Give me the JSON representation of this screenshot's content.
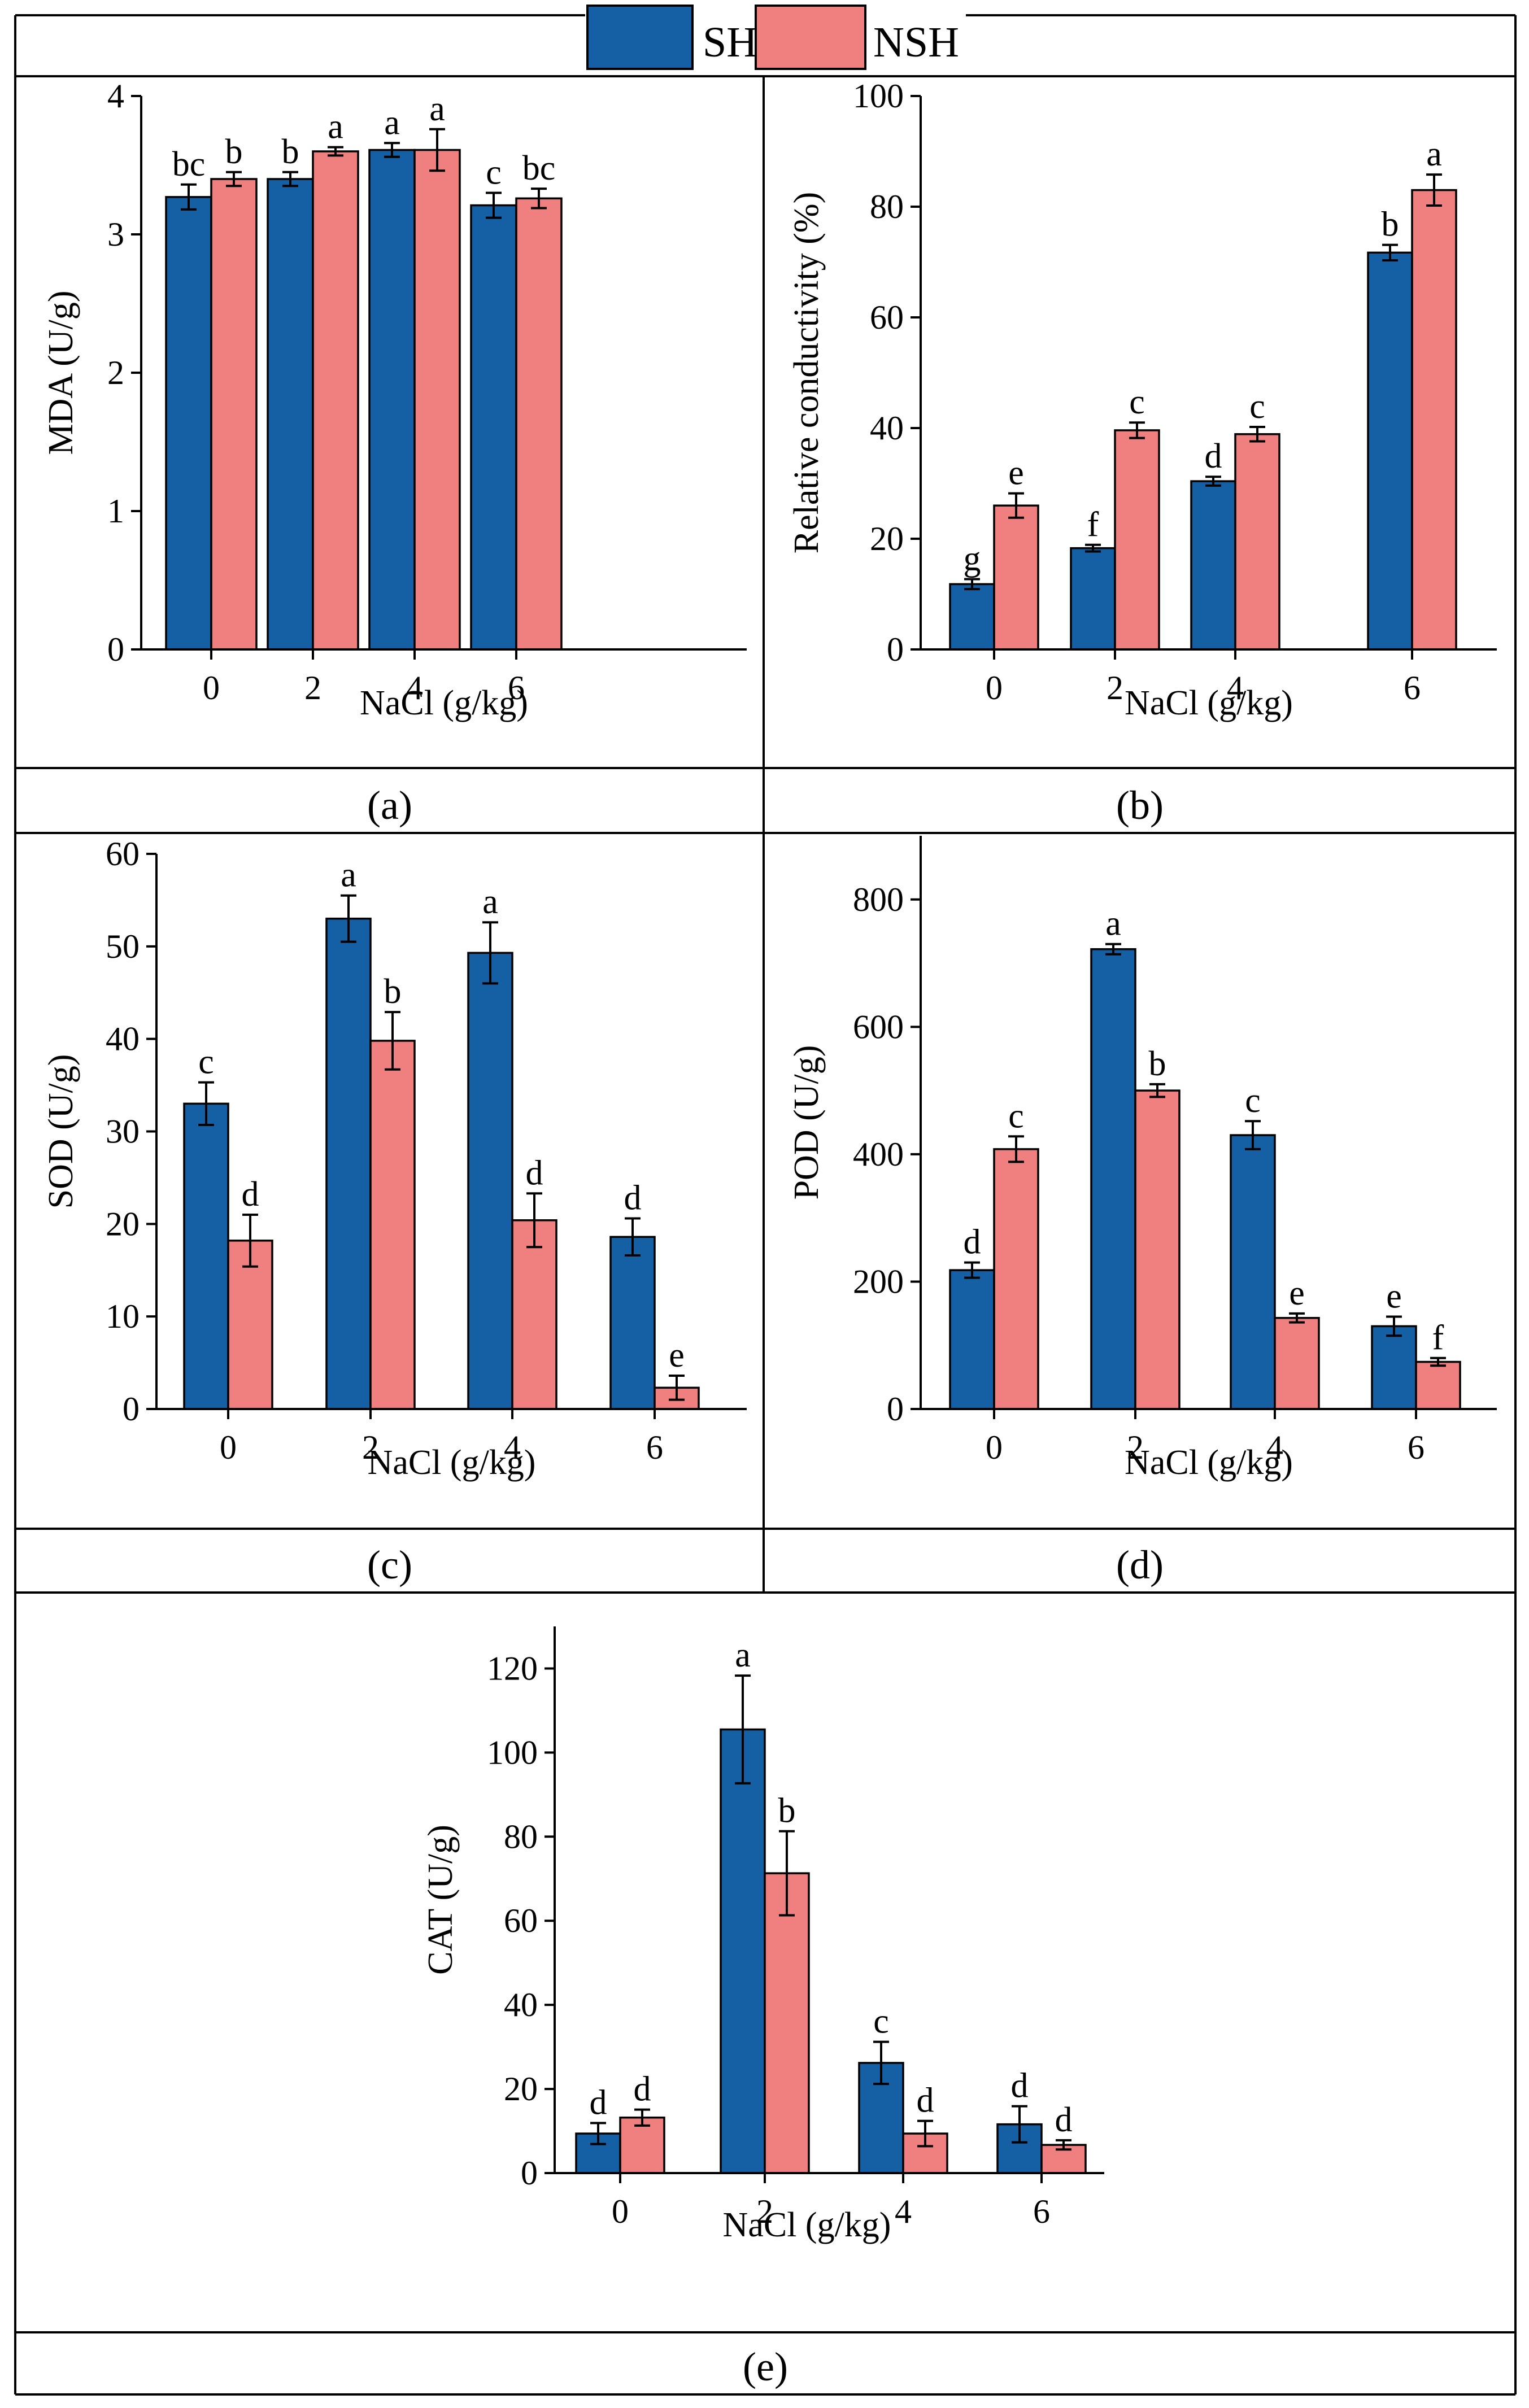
{
  "colors": {
    "SH": "#1560A5",
    "NSH": "#F08080",
    "border": "#000000"
  },
  "legend": {
    "items": [
      {
        "label": "SH",
        "color": "#1560A5"
      },
      {
        "label": "NSH",
        "color": "#F08080"
      }
    ]
  },
  "chart_data": [
    {
      "id": "a",
      "caption": "(a)",
      "type": "bar",
      "categories": [
        "0",
        "2",
        "4",
        "6"
      ],
      "xlabel": "NaCl (g/kg)",
      "ylabel": "MDA (U/g)",
      "ylim": [
        0,
        4
      ],
      "yticks": [
        0,
        1,
        2,
        3,
        4
      ],
      "series": [
        {
          "name": "SH",
          "values": [
            3.27,
            3.4,
            3.61,
            3.21
          ],
          "errors": [
            0.09,
            0.05,
            0.05,
            0.09
          ],
          "letters": [
            "bc",
            "b",
            "a",
            "c"
          ]
        },
        {
          "name": "NSH",
          "values": [
            3.4,
            3.6,
            3.61,
            3.26
          ],
          "errors": [
            0.05,
            0.03,
            0.15,
            0.07
          ],
          "letters": [
            "b",
            "a",
            "a",
            "bc"
          ]
        }
      ]
    },
    {
      "id": "b",
      "caption": "(b)",
      "type": "bar",
      "categories": [
        "0",
        "2",
        "4",
        "6"
      ],
      "xlabel": "NaCl (g/kg)",
      "ylabel": "Relative conductivity (%)",
      "ylim": [
        0,
        100
      ],
      "yticks": [
        0,
        20,
        40,
        60,
        80,
        100
      ],
      "series": [
        {
          "name": "SH",
          "values": [
            11.8,
            18.3,
            30.4,
            71.7
          ],
          "errors": [
            0.9,
            0.6,
            0.8,
            1.4
          ],
          "letters": [
            "g",
            "f",
            "d",
            "b"
          ]
        },
        {
          "name": "NSH",
          "values": [
            26.0,
            39.6,
            38.9,
            83.0
          ],
          "errors": [
            2.2,
            1.4,
            1.3,
            2.8
          ],
          "letters": [
            "e",
            "c",
            "c",
            "a"
          ]
        }
      ]
    },
    {
      "id": "c",
      "caption": "(c)",
      "type": "bar",
      "categories": [
        "0",
        "2",
        "4",
        "6"
      ],
      "xlabel": "NaCl (g/kg)",
      "ylabel": "SOD (U/g)",
      "ylim": [
        0,
        60
      ],
      "yticks": [
        0,
        10,
        20,
        30,
        40,
        50,
        60
      ],
      "series": [
        {
          "name": "SH",
          "values": [
            33.0,
            53.0,
            49.3,
            18.6
          ],
          "errors": [
            2.3,
            2.5,
            3.3,
            2.0
          ],
          "letters": [
            "c",
            "a",
            "a",
            "d"
          ]
        },
        {
          "name": "NSH",
          "values": [
            18.2,
            39.8,
            20.4,
            2.3
          ],
          "errors": [
            2.8,
            3.1,
            2.9,
            1.3
          ],
          "letters": [
            "d",
            "b",
            "d",
            "e"
          ]
        }
      ]
    },
    {
      "id": "d",
      "caption": "(d)",
      "type": "bar",
      "categories": [
        "0",
        "2",
        "4",
        "6"
      ],
      "xlabel": "NaCl (g/kg)",
      "ylabel": "POD (U/g)",
      "ylim": [
        0,
        900
      ],
      "yticks": [
        0,
        200,
        400,
        600,
        800
      ],
      "series": [
        {
          "name": "SH",
          "values": [
            218,
            722,
            430,
            130
          ],
          "errors": [
            12,
            8,
            22,
            15
          ],
          "letters": [
            "d",
            "a",
            "c",
            "e"
          ]
        },
        {
          "name": "NSH",
          "values": [
            408,
            500,
            143,
            74
          ],
          "errors": [
            20,
            10,
            7,
            6
          ],
          "letters": [
            "c",
            "b",
            "e",
            "f"
          ]
        }
      ]
    },
    {
      "id": "e",
      "caption": "(e)",
      "type": "bar",
      "categories": [
        "0",
        "2",
        "4",
        "6"
      ],
      "xlabel": "NaCl (g/kg)",
      "ylabel": "CAT (U/g)",
      "ylim": [
        0,
        130
      ],
      "yticks": [
        0,
        20,
        40,
        60,
        80,
        100,
        120
      ],
      "series": [
        {
          "name": "SH",
          "values": [
            9.4,
            105.5,
            26.2,
            11.6
          ],
          "errors": [
            2.5,
            12.8,
            5.0,
            4.3
          ],
          "letters": [
            "d",
            "a",
            "c",
            "d"
          ]
        },
        {
          "name": "NSH",
          "values": [
            13.2,
            71.3,
            9.4,
            6.7
          ],
          "errors": [
            1.9,
            10.0,
            3.0,
            1.1
          ],
          "letters": [
            "d",
            "b",
            "d",
            "d"
          ]
        }
      ]
    }
  ]
}
